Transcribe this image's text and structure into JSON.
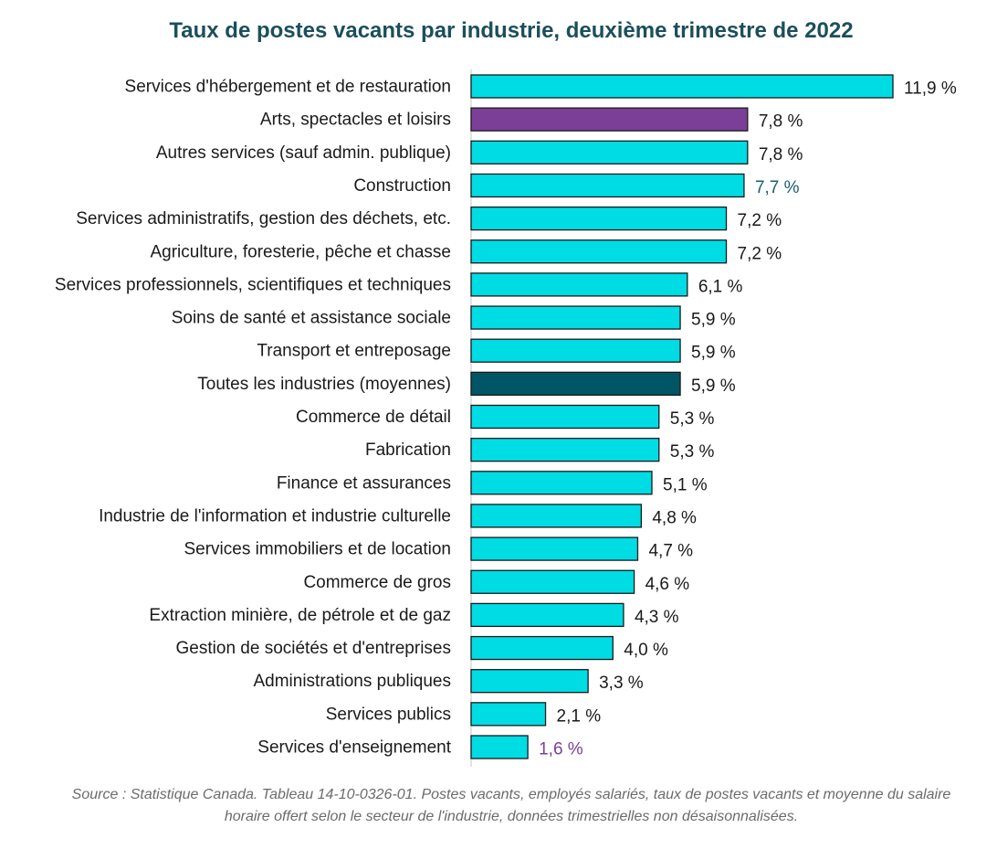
{
  "colors": {
    "bar_default": "#00DCE4",
    "bar_highlight": "#7B3F98",
    "bar_average": "#005664",
    "bar_stroke": "#1a1a1a",
    "label_default": "#1a1a1a",
    "label_blue": "#1b5c74",
    "label_purple": "#7B3F98",
    "title": "#1b4f5c"
  },
  "chart_data": {
    "type": "bar",
    "orientation": "horizontal",
    "title": "Taux de postes vacants par industrie, deuxième trimestre de 2022",
    "source": "Source : Statistique Canada. Tableau 14-10-0326-01. Postes vacants, employés salariés, taux de postes vacants et moyenne du salaire horaire offert selon le secteur de l'industrie, données trimestrielles non désaisonnalisées.",
    "xlim": [
      0,
      12
    ],
    "grid": false,
    "categories": [
      "Services d'hébergement et de restauration",
      "Arts, spectacles et loisirs",
      "Autres services (sauf admin. publique)",
      "Construction",
      "Services administratifs, gestion des déchets, etc.",
      "Agriculture, foresterie, pêche et chasse",
      "Services professionnels, scientifiques et techniques",
      "Soins de santé et assistance sociale",
      "Transport et entreposage",
      "Toutes les industries (moyennes)",
      "Commerce de détail",
      "Fabrication",
      "Finance et assurances",
      "Industrie de l'information et industrie culturelle",
      "Services immobiliers et de location",
      "Commerce de gros",
      "Extraction minière, de pétrole et de gaz",
      "Gestion de sociétés et d'entreprises",
      "Administrations publiques",
      "Services publics",
      "Services d'enseignement"
    ],
    "values": [
      11.9,
      7.8,
      7.8,
      7.7,
      7.2,
      7.2,
      6.1,
      5.9,
      5.9,
      5.9,
      5.3,
      5.3,
      5.1,
      4.8,
      4.7,
      4.6,
      4.3,
      4.0,
      3.3,
      2.1,
      1.6
    ],
    "value_labels": [
      "11,9 %",
      "7,8 %",
      "7,8 %",
      "7,7 %",
      "7,2 %",
      "7,2 %",
      "6,1 %",
      "5,9 %",
      "5,9 %",
      "5,9 %",
      "5,3 %",
      "5,3 %",
      "5,1 %",
      "4,8 %",
      "4,7 %",
      "4,6 %",
      "4,3 %",
      "4,0 %",
      "3,3 %",
      "2,1 %",
      "1,6 %"
    ],
    "bar_colors": [
      "default",
      "highlight",
      "default",
      "default",
      "default",
      "default",
      "default",
      "default",
      "default",
      "average",
      "default",
      "default",
      "default",
      "default",
      "default",
      "default",
      "default",
      "default",
      "default",
      "default",
      "default"
    ],
    "label_colors": [
      "default",
      "default",
      "default",
      "blue",
      "default",
      "default",
      "default",
      "default",
      "default",
      "default",
      "default",
      "default",
      "default",
      "default",
      "default",
      "default",
      "default",
      "default",
      "default",
      "default",
      "purple"
    ]
  }
}
